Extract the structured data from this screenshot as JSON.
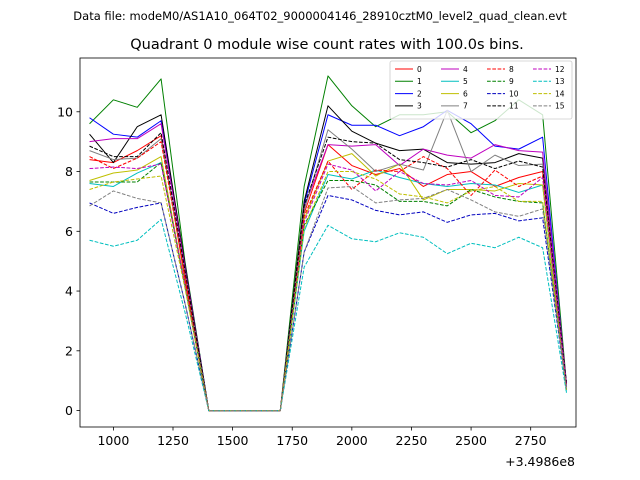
{
  "chart_data": {
    "type": "line",
    "suptitle": "Data file: modeM0/AS1A10_064T02_9000004146_28910cztM0_level2_quad_clean.evt",
    "title": "Quadrant 0 module wise count rates with 100.0s bins.",
    "xlabel": "",
    "ylabel": "",
    "x_offset_label": "+3.4986e8",
    "xlim": [
      860,
      2940
    ],
    "ylim": [
      -0.55,
      11.8
    ],
    "xticks": [
      1000,
      1250,
      1500,
      1750,
      2000,
      2250,
      2500,
      2750
    ],
    "xtick_labels": [
      "1000",
      "1250",
      "1500",
      "1750",
      "2000",
      "2250",
      "2500",
      "2750"
    ],
    "yticks": [
      0,
      2,
      4,
      6,
      8,
      10
    ],
    "ytick_labels": [
      "0",
      "2",
      "4",
      "6",
      "8",
      "10"
    ],
    "grid": false,
    "legend_position": "top-right",
    "x": [
      900,
      1000,
      1100,
      1200,
      1300,
      1400,
      1500,
      1600,
      1700,
      1800,
      1900,
      2000,
      2100,
      2200,
      2300,
      2400,
      2500,
      2600,
      2700,
      2800,
      2900
    ],
    "series": [
      {
        "name": "0",
        "color": "#ff0000",
        "dash": "solid",
        "values": [
          8.4,
          8.3,
          8.7,
          9.2,
          4.4,
          0.0,
          0.0,
          0.0,
          0.0,
          6.6,
          8.9,
          8.2,
          7.9,
          8.1,
          7.5,
          7.9,
          8.0,
          7.5,
          7.8,
          8.0,
          0.9
        ]
      },
      {
        "name": "1",
        "color": "#008000",
        "dash": "solid",
        "values": [
          9.6,
          10.4,
          10.15,
          11.1,
          5.0,
          0.0,
          0.0,
          0.0,
          0.0,
          7.5,
          11.2,
          10.2,
          9.5,
          9.9,
          9.9,
          10.0,
          9.3,
          9.7,
          10.4,
          9.9,
          0.9
        ]
      },
      {
        "name": "2",
        "color": "#0000ff",
        "dash": "solid",
        "values": [
          9.8,
          9.25,
          9.15,
          9.7,
          4.9,
          0.0,
          0.0,
          0.0,
          0.0,
          6.9,
          9.9,
          9.55,
          9.55,
          9.2,
          9.5,
          10.05,
          9.6,
          8.85,
          8.75,
          9.15,
          0.8
        ]
      },
      {
        "name": "3",
        "color": "#000000",
        "dash": "solid",
        "values": [
          9.25,
          8.3,
          9.5,
          9.9,
          4.9,
          0.0,
          0.0,
          0.0,
          0.0,
          7.0,
          10.2,
          9.35,
          8.95,
          8.7,
          8.75,
          8.3,
          8.25,
          8.3,
          8.6,
          8.45,
          0.9
        ]
      },
      {
        "name": "4",
        "color": "#bf00bf",
        "dash": "solid",
        "values": [
          9.0,
          9.1,
          9.1,
          9.6,
          4.8,
          0.0,
          0.0,
          0.0,
          0.0,
          6.8,
          8.9,
          8.85,
          8.9,
          8.2,
          8.75,
          8.55,
          8.45,
          8.9,
          8.7,
          8.65,
          0.9
        ]
      },
      {
        "name": "5",
        "color": "#00bfbf",
        "dash": "solid",
        "values": [
          7.6,
          7.5,
          7.95,
          8.3,
          4.2,
          0.0,
          0.0,
          0.0,
          0.0,
          6.0,
          7.9,
          7.75,
          8.05,
          7.8,
          7.6,
          7.5,
          7.6,
          7.55,
          7.3,
          7.55,
          0.6
        ]
      },
      {
        "name": "6",
        "color": "#bfbf00",
        "dash": "solid",
        "values": [
          7.7,
          7.95,
          8.05,
          8.5,
          4.2,
          0.0,
          0.0,
          0.0,
          0.0,
          6.4,
          8.35,
          8.6,
          7.85,
          8.25,
          7.05,
          7.4,
          7.4,
          7.35,
          7.6,
          7.55,
          0.7
        ]
      },
      {
        "name": "7",
        "color": "#808080",
        "dash": "solid",
        "values": [
          8.7,
          8.4,
          8.45,
          9.1,
          4.6,
          0.0,
          0.0,
          0.0,
          0.0,
          6.7,
          9.4,
          8.75,
          8.0,
          8.25,
          8.05,
          10.05,
          8.0,
          8.55,
          8.2,
          8.25,
          0.8
        ]
      },
      {
        "name": "8",
        "color": "#ff0000",
        "dash": "dashed",
        "values": [
          8.5,
          8.1,
          8.45,
          9.0,
          4.5,
          0.0,
          0.0,
          0.0,
          0.0,
          6.5,
          8.35,
          7.4,
          8.05,
          8.0,
          8.5,
          8.1,
          7.2,
          8.05,
          7.5,
          7.85,
          0.8
        ]
      },
      {
        "name": "9",
        "color": "#008000",
        "dash": "dashed",
        "values": [
          7.65,
          7.65,
          7.65,
          8.3,
          4.2,
          0.0,
          0.0,
          0.0,
          0.0,
          6.2,
          7.7,
          7.7,
          7.55,
          7.0,
          7.0,
          6.85,
          7.4,
          7.15,
          7.0,
          6.95,
          0.7
        ]
      },
      {
        "name": "10",
        "color": "#0000bf",
        "dash": "dashed",
        "values": [
          6.95,
          6.6,
          6.8,
          6.95,
          3.6,
          0.0,
          0.0,
          0.0,
          0.0,
          5.3,
          7.2,
          7.05,
          6.7,
          6.55,
          6.65,
          6.3,
          6.55,
          6.6,
          6.35,
          6.45,
          0.7
        ]
      },
      {
        "name": "11",
        "color": "#000000",
        "dash": "dashed",
        "values": [
          8.85,
          8.5,
          8.5,
          9.3,
          4.7,
          0.0,
          0.0,
          0.0,
          0.0,
          6.85,
          9.15,
          9.0,
          8.95,
          8.4,
          8.3,
          8.15,
          8.4,
          8.1,
          8.35,
          8.15,
          0.9
        ]
      },
      {
        "name": "12",
        "color": "#bf00bf",
        "dash": "dashed",
        "values": [
          8.1,
          8.15,
          8.1,
          8.25,
          4.2,
          0.0,
          0.0,
          0.0,
          0.0,
          6.3,
          8.25,
          8.05,
          7.35,
          8.0,
          7.6,
          7.55,
          7.7,
          7.2,
          7.15,
          7.8,
          0.8
        ]
      },
      {
        "name": "13",
        "color": "#00bfbf",
        "dash": "dashed",
        "values": [
          5.7,
          5.5,
          5.7,
          6.4,
          3.3,
          0.0,
          0.0,
          0.0,
          0.0,
          4.8,
          6.2,
          5.75,
          5.65,
          5.95,
          5.8,
          5.25,
          5.6,
          5.45,
          5.8,
          5.45,
          0.6
        ]
      },
      {
        "name": "14",
        "color": "#bfbf00",
        "dash": "dashed",
        "values": [
          7.4,
          7.65,
          7.75,
          7.85,
          4.1,
          0.0,
          0.0,
          0.0,
          0.0,
          6.1,
          8.0,
          8.0,
          7.75,
          7.25,
          7.15,
          6.95,
          7.35,
          7.5,
          7.0,
          7.0,
          0.7
        ]
      },
      {
        "name": "15",
        "color": "#808080",
        "dash": "dashed",
        "values": [
          6.85,
          7.35,
          7.1,
          6.95,
          3.6,
          0.0,
          0.0,
          0.0,
          0.0,
          5.3,
          7.45,
          7.5,
          6.95,
          7.05,
          7.1,
          7.4,
          7.05,
          6.65,
          6.5,
          6.75,
          0.7
        ]
      }
    ]
  }
}
